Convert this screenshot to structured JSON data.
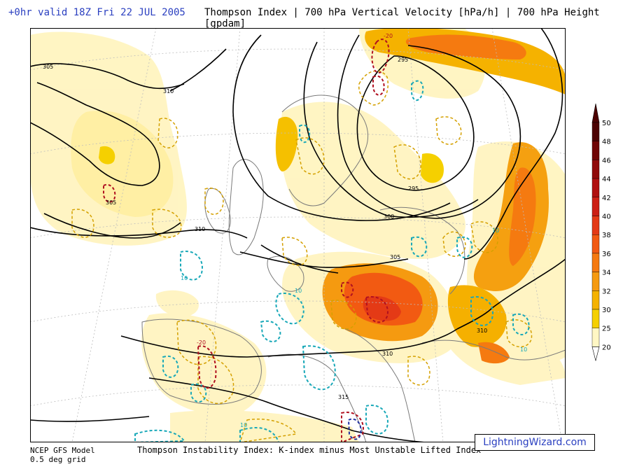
{
  "header": {
    "valid": "+0hr valid 18Z Fri 22 JUL 2005",
    "title": "Thompson Index | 700 hPa Vertical Velocity [hPa/h] | 700 hPa Height [gpdam]"
  },
  "footer": {
    "model_line1": "NCEP GFS Model",
    "model_line2": "0.5 deg grid",
    "description": "Thompson Instability Index: K-index minus Most Unstable Lifted Index",
    "brand": "LightningWizard.com"
  },
  "colors": {
    "c20": "#fffff0",
    "c25": "#fff7c4",
    "c30": "#f5d000",
    "c32": "#f5b200",
    "c34": "#f59a10",
    "c36": "#f57a10",
    "c38": "#f25a12",
    "c40": "#e43a16",
    "c42": "#cc2015",
    "c44": "#b01010",
    "c46": "#900a0a",
    "c48": "#700606",
    "c50": "#4d0202",
    "yellow_dash": "#d4a000",
    "teal_dash": "#18a8b8",
    "red_dash": "#b01020",
    "height_line": "#000000"
  },
  "color_scale": {
    "ticks": [
      50,
      48,
      46,
      44,
      42,
      40,
      38,
      36,
      34,
      32,
      30,
      25,
      20
    ]
  },
  "map": {
    "height_labels": [
      "305",
      "310",
      "305",
      "310",
      "295",
      "300",
      "305",
      "310",
      "310",
      "315",
      "295"
    ],
    "velocity_labels": [
      "-20",
      "-20",
      "10",
      "10",
      "10",
      "10",
      "10"
    ]
  }
}
